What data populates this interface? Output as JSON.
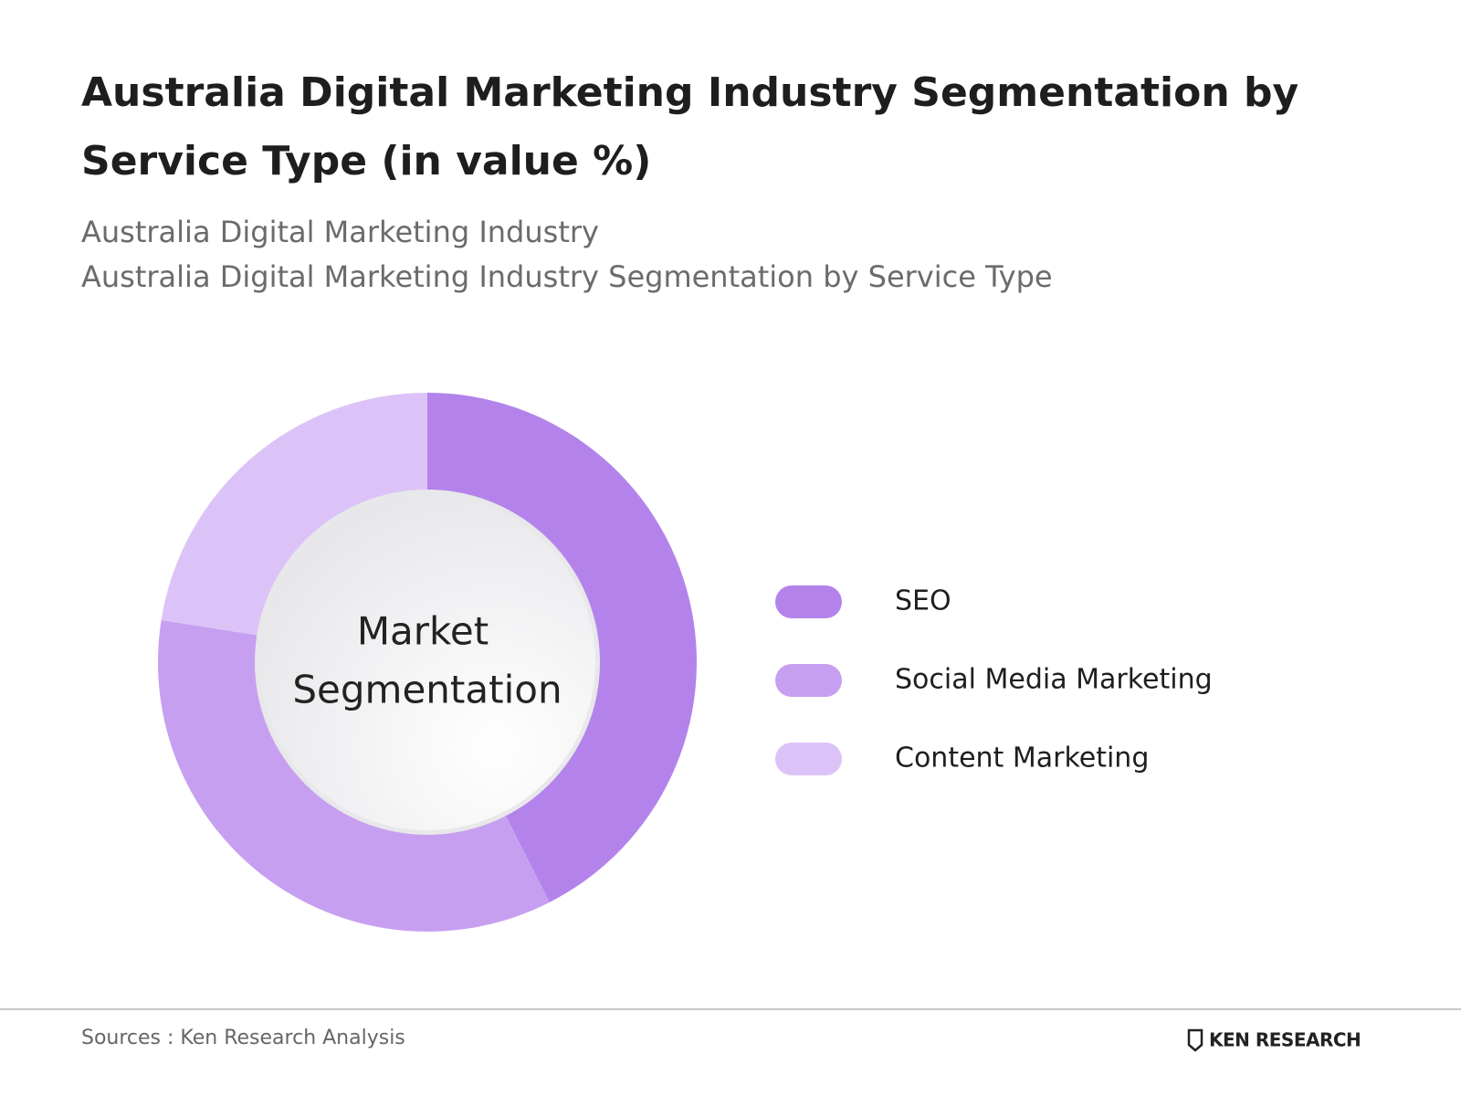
{
  "chart_data": {
    "type": "donut",
    "title": [
      "Australia Digital Marketing Industry Segmentation  by",
      "Service Type (in value %)"
    ],
    "subtitle": [
      "Australia Digital Marketing Industry",
      "Australia Digital Marketing Industry Segmentation by Service Type"
    ],
    "center_label": [
      "Market",
      "Segmentation"
    ],
    "categories": [
      "SEO",
      "Social Media Marketing",
      "Content Marketing"
    ],
    "values": [
      42.5,
      35,
      22.5
    ],
    "colors": [
      "#b383eb",
      "#c79ff0",
      "#dcc3f7"
    ],
    "source": "Sources : Ken Research Analysis",
    "logo": "KEN RESEARCH"
  }
}
